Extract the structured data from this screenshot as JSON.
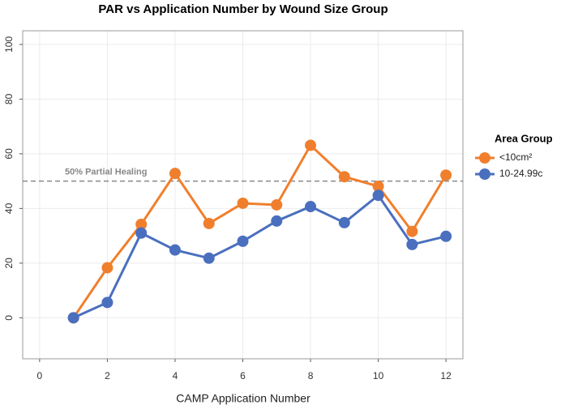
{
  "chart_data": {
    "type": "line",
    "title": "PAR vs Application Number by Wound Size Group",
    "x_label": "CAMP Application Number",
    "x": [
      1,
      2,
      3,
      4,
      5,
      6,
      7,
      8,
      9,
      10,
      11,
      12
    ],
    "series": [
      {
        "name": "<10cm²",
        "color": "#f07f2d",
        "values": [
          0,
          18.3,
          34.2,
          52.8,
          34.5,
          41.9,
          41.3,
          63.1,
          51.6,
          48.1,
          31.6,
          52.2
        ]
      },
      {
        "name": "10-24.99c",
        "color": "#4a6fbf",
        "values": [
          0,
          5.6,
          31,
          24.8,
          21.8,
          28,
          35.4,
          40.7,
          34.8,
          44.8,
          26.8,
          29.8
        ]
      }
    ],
    "xlim": [
      -0.5,
      12.5
    ],
    "xticks": [
      0,
      2,
      4,
      6,
      8,
      10,
      12
    ],
    "ylim": [
      -15,
      105
    ],
    "yticks": [
      0,
      20,
      40,
      60,
      80,
      100
    ],
    "grid": true,
    "legend_title": "Area Group",
    "reference_line": {
      "value": 50,
      "label": "50% Partial Healing"
    }
  }
}
